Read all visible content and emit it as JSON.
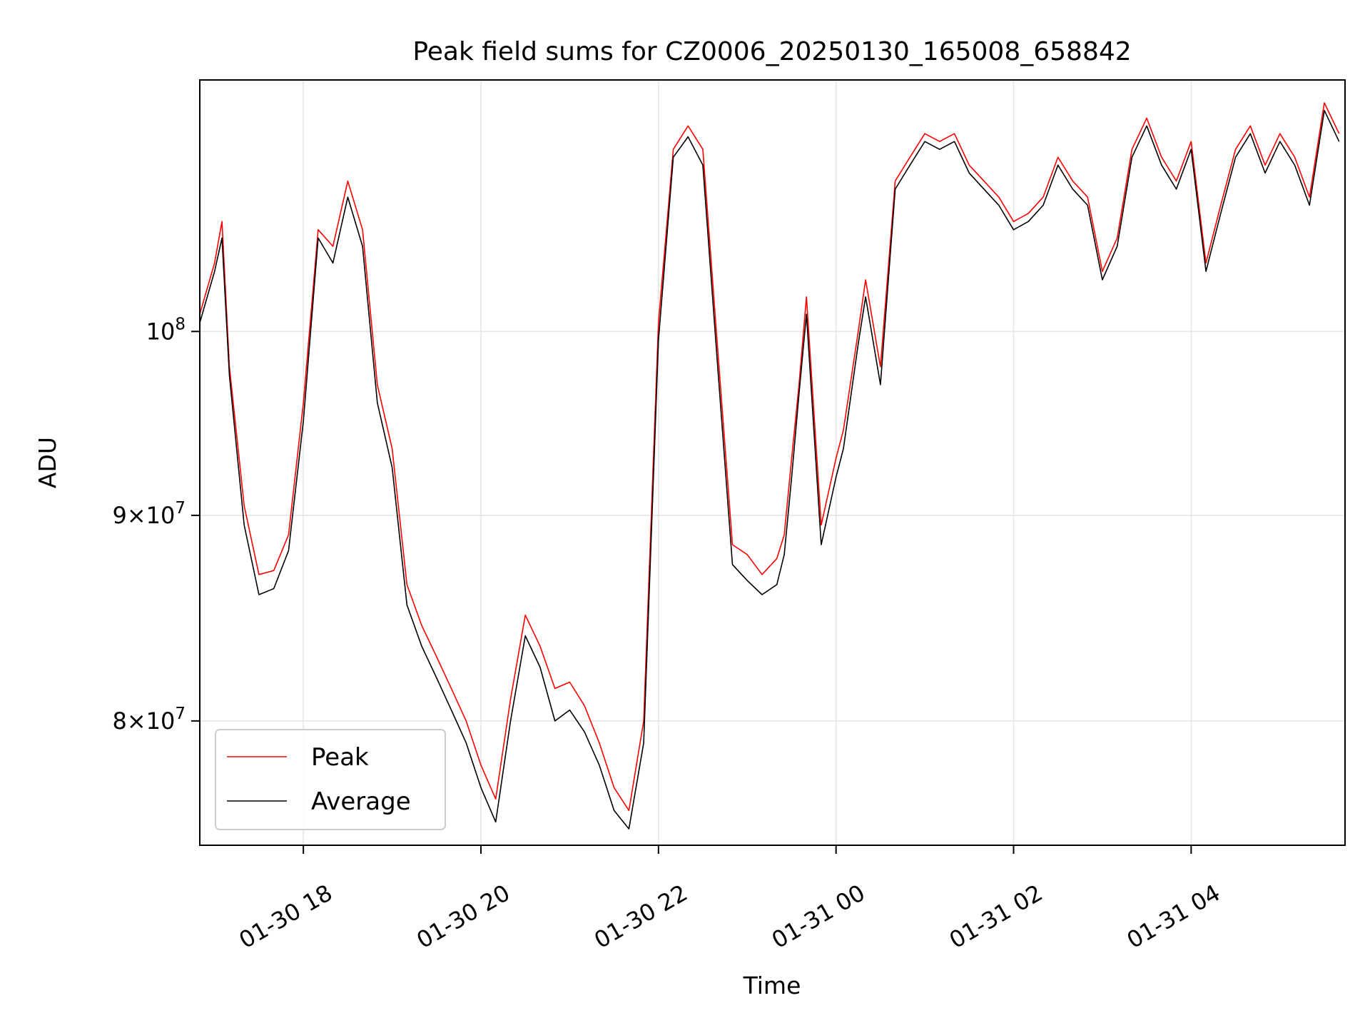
{
  "chart_data": {
    "type": "line",
    "title": "Peak field sums for CZ0006_20250130_165008_658842",
    "xlabel": "Time",
    "ylabel": "ADU",
    "yscale": "log",
    "grid": true,
    "legend_position": "lower-left",
    "xlim": [
      "2025-01-30T16:50",
      "2025-01-31T05:44"
    ],
    "ylim": [
      74500000,
      115500000
    ],
    "x_ticks": [
      {
        "value": "2025-01-30T18:00",
        "label": "01-30 18"
      },
      {
        "value": "2025-01-30T20:00",
        "label": "01-30 20"
      },
      {
        "value": "2025-01-30T22:00",
        "label": "01-30 22"
      },
      {
        "value": "2025-01-31T00:00",
        "label": "01-31 00"
      },
      {
        "value": "2025-01-31T02:00",
        "label": "01-31 02"
      },
      {
        "value": "2025-01-31T04:00",
        "label": "01-31 04"
      }
    ],
    "y_ticks": [
      {
        "value": 100000000,
        "base": "10",
        "exp": "8",
        "mant": ""
      },
      {
        "value": 90000000,
        "base": "10",
        "exp": "7",
        "mant": "9"
      },
      {
        "value": 80000000,
        "base": "10",
        "exp": "7",
        "mant": "8"
      }
    ],
    "series": [
      {
        "name": "Peak",
        "color": "#ff0000",
        "x": [
          "2025-01-30T16:50",
          "2025-01-30T17:00",
          "2025-01-30T17:05",
          "2025-01-30T17:10",
          "2025-01-30T17:20",
          "2025-01-30T17:30",
          "2025-01-30T17:40",
          "2025-01-30T17:50",
          "2025-01-30T18:00",
          "2025-01-30T18:10",
          "2025-01-30T18:20",
          "2025-01-30T18:30",
          "2025-01-30T18:40",
          "2025-01-30T18:50",
          "2025-01-30T19:00",
          "2025-01-30T19:10",
          "2025-01-30T19:20",
          "2025-01-30T19:30",
          "2025-01-30T19:40",
          "2025-01-30T19:50",
          "2025-01-30T20:00",
          "2025-01-30T20:10",
          "2025-01-30T20:20",
          "2025-01-30T20:30",
          "2025-01-30T20:40",
          "2025-01-30T20:50",
          "2025-01-30T21:00",
          "2025-01-30T21:10",
          "2025-01-30T21:20",
          "2025-01-30T21:30",
          "2025-01-30T21:40",
          "2025-01-30T21:50",
          "2025-01-30T22:00",
          "2025-01-30T22:10",
          "2025-01-30T22:20",
          "2025-01-30T22:30",
          "2025-01-30T22:40",
          "2025-01-30T22:50",
          "2025-01-30T23:00",
          "2025-01-30T23:10",
          "2025-01-30T23:20",
          "2025-01-30T23:25",
          "2025-01-30T23:30",
          "2025-01-30T23:35",
          "2025-01-30T23:40",
          "2025-01-30T23:50",
          "2025-01-31T00:00",
          "2025-01-31T00:05",
          "2025-01-31T00:15",
          "2025-01-31T00:20",
          "2025-01-31T00:30",
          "2025-01-31T00:40",
          "2025-01-31T00:50",
          "2025-01-31T01:00",
          "2025-01-31T01:10",
          "2025-01-31T01:20",
          "2025-01-31T01:30",
          "2025-01-31T01:40",
          "2025-01-31T01:50",
          "2025-01-31T02:00",
          "2025-01-31T02:10",
          "2025-01-31T02:20",
          "2025-01-31T02:30",
          "2025-01-31T02:40",
          "2025-01-31T02:50",
          "2025-01-31T03:00",
          "2025-01-31T03:10",
          "2025-01-31T03:20",
          "2025-01-31T03:30",
          "2025-01-31T03:40",
          "2025-01-31T03:50",
          "2025-01-31T04:00",
          "2025-01-31T04:10",
          "2025-01-31T04:20",
          "2025-01-31T04:30",
          "2025-01-31T04:40",
          "2025-01-31T04:50",
          "2025-01-31T05:00",
          "2025-01-31T05:10",
          "2025-01-31T05:20",
          "2025-01-31T05:30",
          "2025-01-31T05:40"
        ],
        "y": [
          101000000,
          104000000,
          106500000,
          98000000,
          90500000,
          87000000,
          87200000,
          89000000,
          96000000,
          106000000,
          105000000,
          109000000,
          106000000,
          97000000,
          93500000,
          86500000,
          84500000,
          83000000,
          81500000,
          80000000,
          78000000,
          76500000,
          81000000,
          85000000,
          83500000,
          81500000,
          81800000,
          80700000,
          79000000,
          77000000,
          76000000,
          80000000,
          100500000,
          111000000,
          112500000,
          111000000,
          99000000,
          88500000,
          88000000,
          87000000,
          87800000,
          89000000,
          93000000,
          97000000,
          102000000,
          89500000,
          93000000,
          94500000,
          100000000,
          103000000,
          98000000,
          109000000,
          110500000,
          112000000,
          111500000,
          112000000,
          110000000,
          109000000,
          108000000,
          106500000,
          107000000,
          108000000,
          110500000,
          109000000,
          108000000,
          103500000,
          105500000,
          111000000,
          113000000,
          110500000,
          109000000,
          111500000,
          104000000,
          107500000,
          111000000,
          112500000,
          110000000,
          112000000,
          110500000,
          108000000,
          114000000,
          112000000
        ]
      },
      {
        "name": "Average",
        "color": "#000000",
        "x": [
          "2025-01-30T16:50",
          "2025-01-30T17:00",
          "2025-01-30T17:05",
          "2025-01-30T17:10",
          "2025-01-30T17:20",
          "2025-01-30T17:30",
          "2025-01-30T17:40",
          "2025-01-30T17:50",
          "2025-01-30T18:00",
          "2025-01-30T18:10",
          "2025-01-30T18:20",
          "2025-01-30T18:30",
          "2025-01-30T18:40",
          "2025-01-30T18:50",
          "2025-01-30T19:00",
          "2025-01-30T19:10",
          "2025-01-30T19:20",
          "2025-01-30T19:30",
          "2025-01-30T19:40",
          "2025-01-30T19:50",
          "2025-01-30T20:00",
          "2025-01-30T20:10",
          "2025-01-30T20:20",
          "2025-01-30T20:30",
          "2025-01-30T20:40",
          "2025-01-30T20:50",
          "2025-01-30T21:00",
          "2025-01-30T21:10",
          "2025-01-30T21:20",
          "2025-01-30T21:30",
          "2025-01-30T21:40",
          "2025-01-30T21:50",
          "2025-01-30T22:00",
          "2025-01-30T22:10",
          "2025-01-30T22:20",
          "2025-01-30T22:30",
          "2025-01-30T22:40",
          "2025-01-30T22:50",
          "2025-01-30T23:00",
          "2025-01-30T23:10",
          "2025-01-30T23:20",
          "2025-01-30T23:25",
          "2025-01-30T23:30",
          "2025-01-30T23:35",
          "2025-01-30T23:40",
          "2025-01-30T23:50",
          "2025-01-31T00:00",
          "2025-01-31T00:05",
          "2025-01-31T00:15",
          "2025-01-31T00:20",
          "2025-01-31T00:30",
          "2025-01-31T00:40",
          "2025-01-31T00:50",
          "2025-01-31T01:00",
          "2025-01-31T01:10",
          "2025-01-31T01:20",
          "2025-01-31T01:30",
          "2025-01-31T01:40",
          "2025-01-31T01:50",
          "2025-01-31T02:00",
          "2025-01-31T02:10",
          "2025-01-31T02:20",
          "2025-01-31T02:30",
          "2025-01-31T02:40",
          "2025-01-31T02:50",
          "2025-01-31T03:00",
          "2025-01-31T03:10",
          "2025-01-31T03:20",
          "2025-01-31T03:30",
          "2025-01-31T03:40",
          "2025-01-31T03:50",
          "2025-01-31T04:00",
          "2025-01-31T04:10",
          "2025-01-31T04:20",
          "2025-01-31T04:30",
          "2025-01-31T04:40",
          "2025-01-31T04:50",
          "2025-01-31T05:00",
          "2025-01-31T05:10",
          "2025-01-31T05:20",
          "2025-01-31T05:30",
          "2025-01-31T05:40"
        ],
        "y": [
          100500000,
          103500000,
          105500000,
          97500000,
          89500000,
          86000000,
          86300000,
          88200000,
          95000000,
          105500000,
          104000000,
          108000000,
          105000000,
          96000000,
          92500000,
          85500000,
          83500000,
          82000000,
          80500000,
          79000000,
          77000000,
          75500000,
          80000000,
          84000000,
          82500000,
          80000000,
          80500000,
          79500000,
          78000000,
          76000000,
          75200000,
          79000000,
          99500000,
          110500000,
          111800000,
          110000000,
          98000000,
          87500000,
          86700000,
          86000000,
          86500000,
          88000000,
          92000000,
          96500000,
          101000000,
          88500000,
          92000000,
          93500000,
          99300000,
          102000000,
          97000000,
          108500000,
          110000000,
          111500000,
          111000000,
          111500000,
          109500000,
          108500000,
          107500000,
          106000000,
          106500000,
          107500000,
          110000000,
          108500000,
          107500000,
          103000000,
          105000000,
          110500000,
          112500000,
          110000000,
          108500000,
          111000000,
          103500000,
          107000000,
          110500000,
          112000000,
          109500000,
          111500000,
          110000000,
          107500000,
          113500000,
          111500000
        ]
      }
    ]
  }
}
